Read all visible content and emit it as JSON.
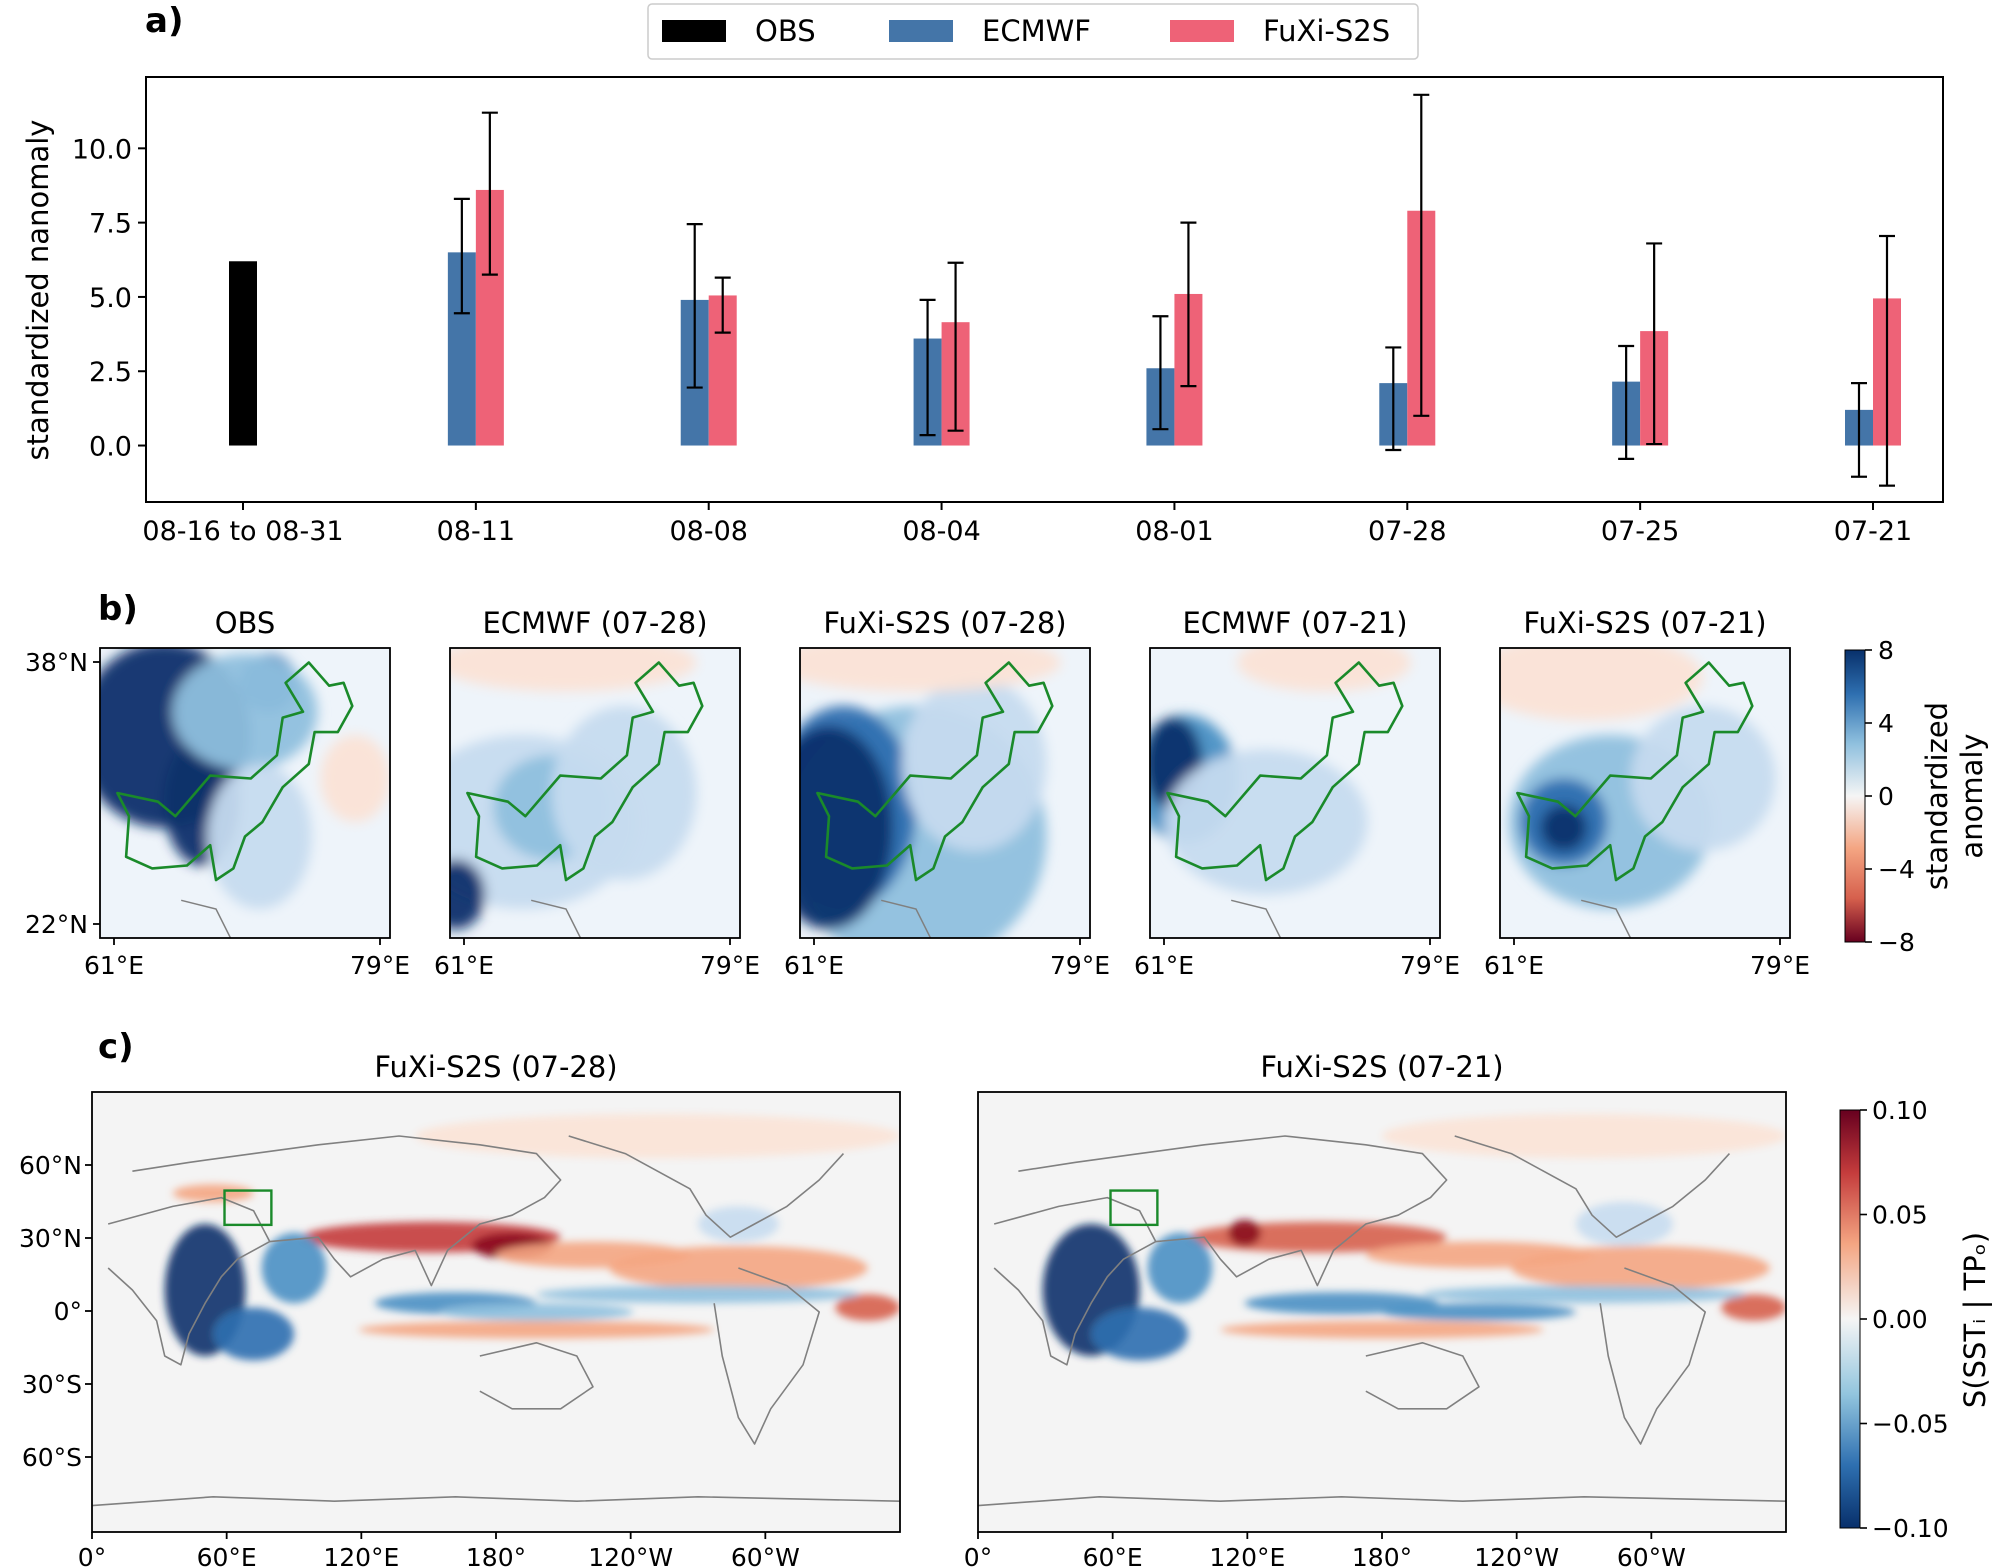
{
  "colors": {
    "obs": "#000000",
    "ecmwf": "#4475a8",
    "fuxi": "#ee6277",
    "outline": "#1a8a2a",
    "coast": "#808080"
  },
  "panels": {
    "a_label": "a)",
    "b_label": "b)",
    "c_label": "c)"
  },
  "chart_data": [
    {
      "type": "bar",
      "panel": "a",
      "categories": [
        "08-16 to 08-31",
        "08-11",
        "08-08",
        "08-04",
        "08-01",
        "07-28",
        "07-25",
        "07-21"
      ],
      "ylabel": "standardized nanomaly",
      "ylim": [
        -1.9,
        12.4
      ],
      "yticks": [
        0.0,
        2.5,
        5.0,
        7.5,
        10.0
      ],
      "ytick_labels": [
        "0.0",
        "2.5",
        "5.0",
        "7.5",
        "10.0"
      ],
      "legend": {
        "placement": "top-center",
        "entries": [
          "OBS",
          "ECMWF",
          "FuXi-S2S"
        ]
      },
      "series": [
        {
          "name": "OBS",
          "values": [
            6.2,
            null,
            null,
            null,
            null,
            null,
            null,
            null
          ]
        },
        {
          "name": "ECMWF",
          "values": [
            null,
            6.5,
            4.9,
            3.6,
            2.6,
            2.1,
            2.15,
            1.2
          ],
          "err_low": [
            null,
            4.45,
            1.95,
            0.35,
            0.55,
            -0.15,
            -0.45,
            -1.05
          ],
          "err_high": [
            null,
            8.3,
            7.45,
            4.9,
            4.35,
            3.3,
            3.35,
            2.1
          ]
        },
        {
          "name": "FuXi-S2S",
          "values": [
            null,
            8.6,
            5.05,
            4.15,
            5.1,
            7.9,
            3.85,
            4.95
          ],
          "err_low": [
            null,
            5.75,
            3.8,
            0.5,
            2.0,
            1.0,
            0.05,
            -1.35
          ],
          "err_high": [
            null,
            11.2,
            5.65,
            6.15,
            7.5,
            11.8,
            6.8,
            7.05
          ]
        }
      ]
    },
    {
      "type": "heatmap",
      "panel": "b",
      "titles": [
        "OBS",
        "ECMWF (07-28)",
        "FuXi-S2S (07-28)",
        "ECMWF (07-21)",
        "FuXi-S2S (07-21)"
      ],
      "lat_ticks": [
        "38°N",
        "22°N"
      ],
      "lon_ticks": [
        "61°E",
        "79°E"
      ],
      "lon_range": [
        60,
        79
      ],
      "lat_range": [
        22,
        38
      ],
      "colorbar": {
        "label_line1": "standardized",
        "label_line2": "anomaly",
        "ticks": [
          "8",
          "4",
          "0",
          "−4",
          "−8"
        ],
        "range": [
          -8,
          8
        ],
        "colormap": "RdBu"
      }
    },
    {
      "type": "heatmap",
      "panel": "c",
      "titles": [
        "FuXi-S2S (07-28)",
        "FuXi-S2S (07-21)"
      ],
      "lat_ticks": [
        "60°N",
        "30°N",
        "0°",
        "30°S",
        "60°S"
      ],
      "lon_ticks": [
        "0°",
        "60°E",
        "120°E",
        "180°",
        "120°W",
        "60°W"
      ],
      "colorbar": {
        "label": "S(SSTᵢ | TPₒ)",
        "ticks": [
          "0.10",
          "0.05",
          "0.00",
          "−0.05",
          "−0.10"
        ],
        "range": [
          -0.1,
          0.1
        ],
        "colormap": "RdBu_r"
      }
    }
  ]
}
